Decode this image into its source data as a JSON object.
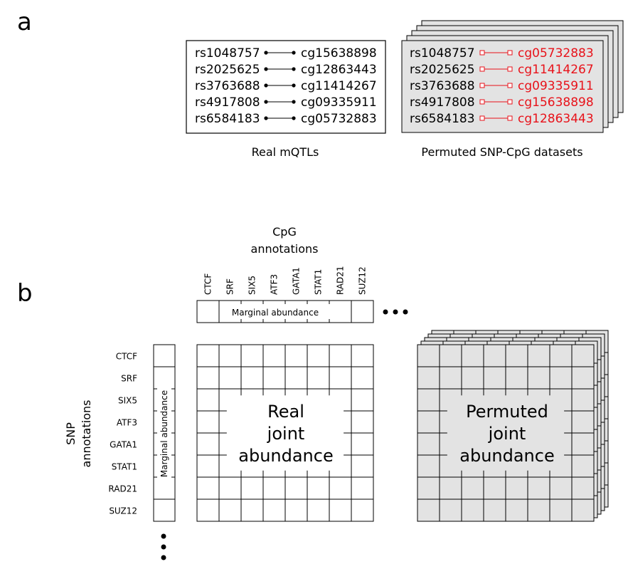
{
  "panel_a": {
    "letter": "a",
    "real": {
      "caption": "Real mQTLs",
      "pairs": [
        {
          "snp": "rs1048757",
          "cpg": "cg15638898"
        },
        {
          "snp": "rs2025625",
          "cpg": "cg12863443"
        },
        {
          "snp": "rs3763688",
          "cpg": "cg11414267"
        },
        {
          "snp": "rs4917808",
          "cpg": "cg09335911"
        },
        {
          "snp": "rs6584183",
          "cpg": "cg05732883"
        }
      ]
    },
    "permuted": {
      "caption": "Permuted SNP-CpG datasets",
      "pairs": [
        {
          "snp": "rs1048757",
          "cpg": "cg05732883"
        },
        {
          "snp": "rs2025625",
          "cpg": "cg11414267"
        },
        {
          "snp": "rs3763688",
          "cpg": "cg09335911"
        },
        {
          "snp": "rs4917808",
          "cpg": "cg15638898"
        },
        {
          "snp": "rs6584183",
          "cpg": "cg12863443"
        }
      ],
      "highlight_color": "#e8121a"
    }
  },
  "panel_b": {
    "letter": "b",
    "cpg_title_line1": "CpG",
    "cpg_title_line2": "annotations",
    "cpg_annotations": [
      "CTCF",
      "SRF",
      "SIX5",
      "ATF3",
      "GATA1",
      "STAT1",
      "RAD21",
      "SUZ12"
    ],
    "snp_title_line1": "SNP",
    "snp_title_line2": "annotations",
    "snp_annotations": [
      "CTCF",
      "SRF",
      "SIX5",
      "ATF3",
      "GATA1",
      "STAT1",
      "RAD21",
      "SUZ12"
    ],
    "marginal_label": "Marginal abundance",
    "real_joint": [
      "Real",
      "joint",
      "abundance"
    ],
    "permuted_joint": [
      "Permuted",
      "joint",
      "abundance"
    ],
    "grid_rows": 8,
    "grid_cols": 8,
    "permuted_fill": "#e3e3e3"
  }
}
